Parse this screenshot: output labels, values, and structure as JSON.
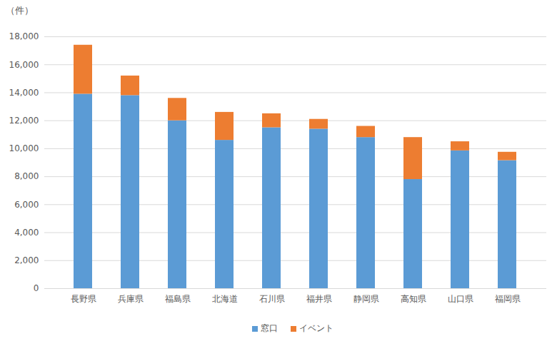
{
  "chart_data": {
    "type": "bar",
    "stacked": true,
    "y_label": "（件）",
    "categories": [
      "長野県",
      "兵庫県",
      "福島県",
      "北海道",
      "石川県",
      "福井県",
      "静岡県",
      "高知県",
      "山口県",
      "福岡県"
    ],
    "series": [
      {
        "name": "窓口",
        "color": "#5b9bd5",
        "values": [
          13900,
          13800,
          12000,
          10600,
          11500,
          11400,
          10800,
          7800,
          9850,
          9150
        ]
      },
      {
        "name": "イベント",
        "color": "#ed7d31",
        "values": [
          3500,
          1400,
          1600,
          2000,
          1000,
          700,
          800,
          3000,
          650,
          600
        ]
      }
    ],
    "ylim": [
      0,
      18000
    ],
    "yticks": [
      0,
      {
        "value": 2000,
        "label": "2,000"
      },
      {
        "value": 4000,
        "label": "4,000"
      },
      {
        "value": 6000,
        "label": "6,000"
      },
      {
        "value": 8000,
        "label": "8,000"
      },
      {
        "value": 10000,
        "label": "10,000"
      },
      {
        "value": 12000,
        "label": "12,000"
      },
      {
        "value": 14000,
        "label": "14,000"
      },
      {
        "value": 16000,
        "label": "16,000"
      },
      {
        "value": 18000,
        "label": "18,000"
      }
    ],
    "grid": true,
    "legend": "bottom"
  }
}
